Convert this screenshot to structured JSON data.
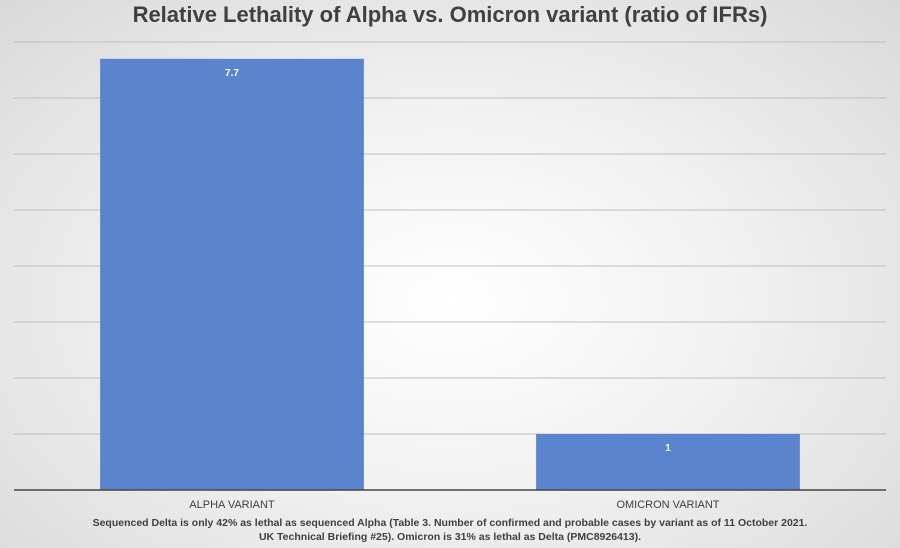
{
  "chart_data": {
    "type": "bar",
    "title": "Relative Lethality of Alpha vs. Omicron variant (ratio of IFRs)",
    "categories": [
      "ALPHA VARIANT",
      "OMICRON VARIANT"
    ],
    "values": [
      7.7,
      1
    ],
    "data_labels": [
      "7.7",
      "1"
    ],
    "xlabel": "",
    "ylabel": "",
    "ylim": [
      0,
      8
    ],
    "grid": true,
    "bar_color": "#5b84ce",
    "label_color": "#ffffff"
  },
  "footnote": {
    "line1": "Sequenced Delta is only 42% as lethal as sequenced Alpha (Table 3. Number of confirmed and probable cases by variant as of 11 October 2021.",
    "line2": "UK Technical Briefing #25). Omicron is 31% as lethal as Delta (PMC8926413)."
  }
}
